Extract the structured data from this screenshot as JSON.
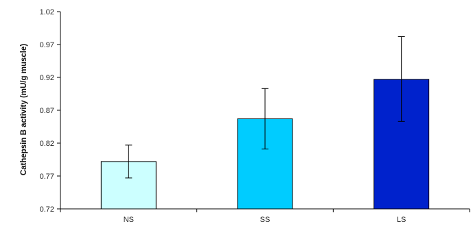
{
  "chart_data": {
    "type": "bar",
    "title": "",
    "xlabel": "",
    "ylabel": "Cathepsin B activity (mU/g muscle)",
    "ylim": [
      0.72,
      1.02
    ],
    "yticks": [
      "0.72",
      "0.77",
      "0.82",
      "0.87",
      "0.92",
      "0.97",
      "1.02"
    ],
    "categories": [
      "NS",
      "SS",
      "LS"
    ],
    "values": [
      0.792,
      0.857,
      0.917
    ],
    "error_low": [
      0.767,
      0.811,
      0.853
    ],
    "error_high": [
      0.817,
      0.903,
      0.982
    ],
    "colors": [
      "#ccffff",
      "#00ccff",
      "#0022cc"
    ],
    "grid": false,
    "legend": "none"
  }
}
